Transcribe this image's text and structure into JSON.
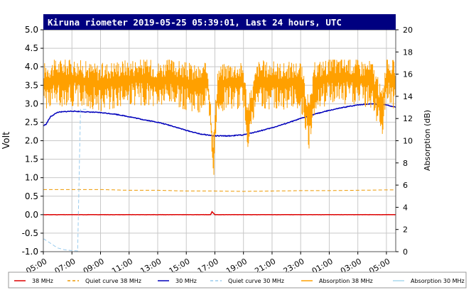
{
  "chart_data": {
    "type": "line",
    "title": "Kiruna riometer 2019-05-25 05:39:01, Last 24 hours, UTC",
    "ylabel": "Volt",
    "y2label": "Absorption (dB)",
    "ylim": [
      -1.0,
      5.0
    ],
    "y2lim": [
      0,
      20
    ],
    "yticks": [
      "5.0",
      "4.5",
      "4.0",
      "3.5",
      "3.0",
      "2.5",
      "2.0",
      "1.5",
      "1.0",
      "0.5",
      "0.0",
      "-0.5",
      "-1.0"
    ],
    "y2ticks": [
      "20",
      "18",
      "16",
      "14",
      "12",
      "10",
      "8",
      "6",
      "4",
      "2",
      "0"
    ],
    "xticks": [
      "05:00",
      "07:00",
      "09:00",
      "11:00",
      "13:00",
      "15:00",
      "17:00",
      "19:00",
      "21:00",
      "23:00",
      "01:00",
      "03:00",
      "05:00"
    ],
    "xlim_hours": [
      0,
      24.65
    ],
    "grid": true,
    "legend_position": "bottom",
    "series": [
      {
        "name": "38 MHz",
        "axis": "left",
        "color": "#dd0000",
        "style": "solid",
        "x": [
          0,
          1,
          2,
          4,
          6,
          8,
          10,
          11.7,
          11.8,
          12,
          14,
          16,
          18,
          20,
          22,
          24,
          24.65
        ],
        "y": [
          0.0,
          0.0,
          0.0,
          0.0,
          0.0,
          0.0,
          0.0,
          0.0,
          0.08,
          0.0,
          0.0,
          0.0,
          0.0,
          0.0,
          0.0,
          0.0,
          0.0
        ]
      },
      {
        "name": "Quiet curve 38 MHz",
        "axis": "left",
        "color": "#ee9900",
        "style": "dashed",
        "x": [
          0,
          2,
          4,
          6,
          8,
          10,
          12,
          14,
          16,
          18,
          20,
          22,
          24,
          24.65
        ],
        "y": [
          0.68,
          0.68,
          0.68,
          0.66,
          0.66,
          0.64,
          0.64,
          0.63,
          0.64,
          0.65,
          0.65,
          0.66,
          0.67,
          0.67
        ]
      },
      {
        "name": "30 MHz",
        "axis": "left",
        "color": "#0000bb",
        "style": "solid",
        "x": [
          0,
          0.2,
          0.5,
          1,
          2,
          3,
          4,
          5,
          6,
          7,
          8,
          9,
          10,
          11,
          12,
          13,
          14,
          15,
          16,
          17,
          18,
          19,
          20,
          21,
          22,
          23,
          24,
          24.65
        ],
        "y": [
          2.4,
          2.45,
          2.65,
          2.77,
          2.8,
          2.78,
          2.76,
          2.72,
          2.65,
          2.57,
          2.5,
          2.4,
          2.28,
          2.18,
          2.13,
          2.13,
          2.16,
          2.25,
          2.35,
          2.47,
          2.6,
          2.72,
          2.82,
          2.9,
          2.97,
          3.0,
          2.97,
          2.9
        ]
      },
      {
        "name": "Quiet curve 30 MHz",
        "axis": "left",
        "color": "#99ccee",
        "style": "dashed",
        "x": [
          0,
          0.3,
          0.6,
          1,
          1.5,
          2,
          2.4,
          2.6,
          3
        ],
        "y": [
          -0.65,
          -0.72,
          -0.8,
          -0.9,
          -0.95,
          -0.97,
          -0.98,
          2.85,
          2.85
        ]
      },
      {
        "name": "Absorption 38 MHz",
        "axis": "right",
        "color": "#ffa000",
        "style": "solid",
        "x": [
          0,
          1,
          2,
          3,
          4,
          5,
          6,
          7,
          8,
          9,
          10,
          11,
          11.5,
          11.9,
          12.2,
          13,
          14,
          14.3,
          15,
          16,
          17,
          18,
          18.6,
          19,
          20,
          21,
          22,
          23,
          23.7,
          24,
          24.65
        ],
        "y": [
          15.5,
          15.8,
          15.9,
          15.6,
          15.4,
          15.7,
          15.8,
          15.9,
          15.6,
          15.8,
          15.5,
          15.2,
          15.6,
          9.0,
          15.2,
          15.6,
          15.5,
          12.0,
          15.7,
          15.6,
          15.5,
          15.7,
          12.0,
          15.6,
          15.9,
          16.0,
          15.8,
          15.7,
          13.0,
          16.2,
          15.5
        ]
      },
      {
        "name": "Absorption 30 MHz",
        "axis": "right",
        "color": "#a8d8ee",
        "style": "solid",
        "x": [],
        "y": []
      }
    ]
  }
}
